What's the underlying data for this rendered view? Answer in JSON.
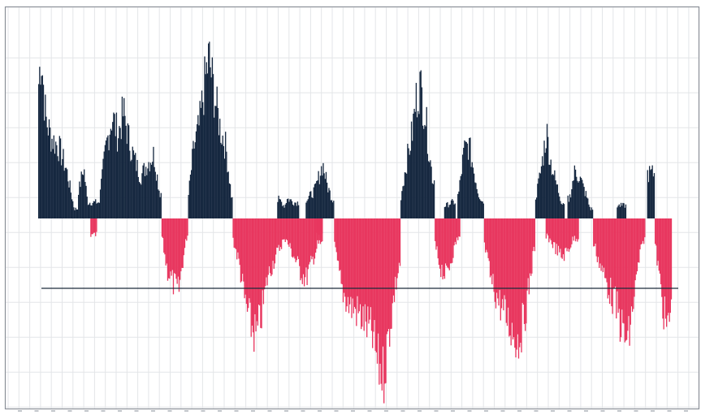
{
  "chart_data": {
    "type": "bar",
    "title": "",
    "xlabel": "",
    "ylabel": "",
    "grid": true,
    "axis_labels_shown": false,
    "ylim": [
      -5.4,
      5.4
    ],
    "reference_line": -2,
    "colors": {
      "positive": "#162840",
      "negative": "#e8375f",
      "reference": "#1c2a3a"
    },
    "segments": [
      {
        "name": "pos-1",
        "sign": 1,
        "start": 0,
        "end": 42,
        "peaks": [
          [
            0,
            4.0
          ],
          [
            3,
            5.2
          ],
          [
            8,
            3.1
          ],
          [
            14,
            2.5
          ],
          [
            22,
            2.2
          ],
          [
            30,
            1.5
          ],
          [
            38,
            0.3
          ]
        ]
      },
      {
        "name": "pos-2",
        "sign": 1,
        "start": 42,
        "end": 65,
        "peaks": [
          [
            43,
            0.9
          ],
          [
            48,
            1.6
          ],
          [
            52,
            0.5
          ]
        ]
      },
      {
        "name": "neg-1",
        "sign": -1,
        "start": 55,
        "end": 62,
        "peaks": [
          [
            58,
            0.5
          ]
        ]
      },
      {
        "name": "pos-3",
        "sign": 1,
        "start": 65,
        "end": 130,
        "peaks": [
          [
            66,
            1.0
          ],
          [
            72,
            2.3
          ],
          [
            78,
            3.2
          ],
          [
            84,
            2.6
          ],
          [
            90,
            3.3
          ],
          [
            96,
            2.4
          ],
          [
            102,
            1.8
          ],
          [
            108,
            1.3
          ],
          [
            115,
            1.7
          ],
          [
            122,
            2.0
          ],
          [
            128,
            0.8
          ]
        ]
      },
      {
        "name": "neg-2",
        "sign": -1,
        "start": 130,
        "end": 158,
        "peaks": [
          [
            130,
            0.5
          ],
          [
            136,
            1.6
          ],
          [
            142,
            2.0
          ],
          [
            148,
            2.3
          ],
          [
            152,
            1.4
          ],
          [
            157,
            0.5
          ]
        ]
      },
      {
        "name": "pos-4",
        "sign": 1,
        "start": 158,
        "end": 205,
        "peaks": [
          [
            158,
            0.6
          ],
          [
            164,
            2.2
          ],
          [
            170,
            2.9
          ],
          [
            176,
            4.3
          ],
          [
            180,
            5.0
          ],
          [
            186,
            3.8
          ],
          [
            192,
            2.8
          ],
          [
            198,
            2.2
          ],
          [
            204,
            0.6
          ]
        ]
      },
      {
        "name": "neg-3",
        "sign": -1,
        "start": 205,
        "end": 260,
        "peaks": [
          [
            205,
            0.6
          ],
          [
            212,
            1.4
          ],
          [
            218,
            2.6
          ],
          [
            224,
            3.3
          ],
          [
            230,
            3.7
          ],
          [
            236,
            2.9
          ],
          [
            242,
            1.8
          ],
          [
            250,
            1.2
          ],
          [
            258,
            0.7
          ]
        ]
      },
      {
        "name": "pos-5",
        "sign": 1,
        "start": 252,
        "end": 262,
        "peaks": [
          [
            254,
            0.6
          ],
          [
            258,
            0.4
          ]
        ]
      },
      {
        "name": "neg-4",
        "sign": -1,
        "start": 260,
        "end": 300,
        "peaks": [
          [
            262,
            0.7
          ],
          [
            270,
            1.2
          ],
          [
            276,
            1.6
          ],
          [
            282,
            1.9
          ],
          [
            288,
            1.4
          ],
          [
            295,
            0.8
          ]
        ]
      },
      {
        "name": "pos-6",
        "sign": 1,
        "start": 262,
        "end": 275,
        "peaks": [
          [
            264,
            0.6
          ],
          [
            270,
            0.5
          ]
        ]
      },
      {
        "name": "pos-7",
        "sign": 1,
        "start": 282,
        "end": 312,
        "peaks": [
          [
            284,
            0.6
          ],
          [
            292,
            0.9
          ],
          [
            300,
            1.7
          ],
          [
            305,
            1.0
          ],
          [
            310,
            0.6
          ]
        ]
      },
      {
        "name": "neg-5",
        "sign": -1,
        "start": 292,
        "end": 300,
        "peaks": [
          [
            295,
            0.5
          ]
        ]
      },
      {
        "name": "neg-6",
        "sign": -1,
        "start": 312,
        "end": 382,
        "peaks": [
          [
            312,
            0.8
          ],
          [
            320,
            2.2
          ],
          [
            328,
            2.7
          ],
          [
            336,
            2.9
          ],
          [
            344,
            3.2
          ],
          [
            352,
            3.6
          ],
          [
            358,
            4.5
          ],
          [
            364,
            4.9
          ],
          [
            370,
            3.5
          ],
          [
            376,
            2.2
          ],
          [
            381,
            1.4
          ]
        ]
      },
      {
        "name": "pos-8",
        "sign": 1,
        "start": 382,
        "end": 418,
        "peaks": [
          [
            382,
            0.6
          ],
          [
            388,
            1.7
          ],
          [
            394,
            2.6
          ],
          [
            398,
            3.6
          ],
          [
            402,
            4.2
          ],
          [
            408,
            3.3
          ],
          [
            412,
            2.1
          ],
          [
            416,
            1.2
          ]
        ]
      },
      {
        "name": "neg-7",
        "sign": -1,
        "start": 418,
        "end": 445,
        "peaks": [
          [
            418,
            0.8
          ],
          [
            424,
            1.5
          ],
          [
            430,
            1.8
          ],
          [
            436,
            1.2
          ],
          [
            442,
            0.6
          ]
        ]
      },
      {
        "name": "pos-9",
        "sign": 1,
        "start": 428,
        "end": 440,
        "peaks": [
          [
            430,
            0.4
          ],
          [
            436,
            0.5
          ]
        ]
      },
      {
        "name": "pos-10",
        "sign": 1,
        "start": 442,
        "end": 470,
        "peaks": [
          [
            443,
            0.7
          ],
          [
            449,
            2.1
          ],
          [
            454,
            2.3
          ],
          [
            458,
            1.7
          ],
          [
            464,
            0.8
          ],
          [
            469,
            0.5
          ]
        ]
      },
      {
        "name": "neg-8",
        "sign": -1,
        "start": 470,
        "end": 524,
        "peaks": [
          [
            471,
            0.9
          ],
          [
            478,
            2.0
          ],
          [
            486,
            2.6
          ],
          [
            494,
            3.1
          ],
          [
            500,
            3.5
          ],
          [
            506,
            3.8
          ],
          [
            512,
            3.2
          ],
          [
            518,
            2.0
          ],
          [
            523,
            0.9
          ]
        ]
      },
      {
        "name": "pos-11",
        "sign": 1,
        "start": 524,
        "end": 555,
        "peaks": [
          [
            525,
            0.7
          ],
          [
            530,
            1.5
          ],
          [
            536,
            2.7
          ],
          [
            540,
            1.8
          ],
          [
            546,
            1.1
          ],
          [
            552,
            0.5
          ]
        ]
      },
      {
        "name": "neg-9",
        "sign": -1,
        "start": 535,
        "end": 570,
        "peaks": [
          [
            538,
            0.6
          ],
          [
            545,
            0.9
          ],
          [
            552,
            1.2
          ],
          [
            558,
            1.0
          ],
          [
            565,
            0.6
          ]
        ]
      },
      {
        "name": "pos-12",
        "sign": 1,
        "start": 558,
        "end": 585,
        "peaks": [
          [
            560,
            0.6
          ],
          [
            566,
            1.5
          ],
          [
            572,
            1.2
          ],
          [
            578,
            0.7
          ],
          [
            582,
            0.3
          ]
        ]
      },
      {
        "name": "neg-10",
        "sign": -1,
        "start": 585,
        "end": 640,
        "peaks": [
          [
            586,
            0.8
          ],
          [
            594,
            1.6
          ],
          [
            602,
            2.2
          ],
          [
            610,
            2.8
          ],
          [
            616,
            3.5
          ],
          [
            622,
            3.9
          ],
          [
            628,
            2.5
          ],
          [
            634,
            1.2
          ],
          [
            639,
            0.6
          ]
        ]
      },
      {
        "name": "pos-13",
        "sign": 1,
        "start": 610,
        "end": 620,
        "peaks": [
          [
            613,
            0.4
          ]
        ]
      },
      {
        "name": "pos-14",
        "sign": 1,
        "start": 642,
        "end": 650,
        "peaks": [
          [
            646,
            1.4
          ]
        ]
      },
      {
        "name": "neg-11",
        "sign": -1,
        "start": 650,
        "end": 668,
        "peaks": [
          [
            651,
            0.9
          ],
          [
            656,
            2.1
          ],
          [
            661,
            3.2
          ],
          [
            665,
            3.5
          ],
          [
            667,
            2.5
          ]
        ]
      }
    ]
  }
}
